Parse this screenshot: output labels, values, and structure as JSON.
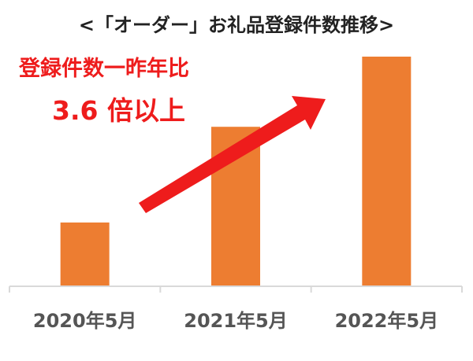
{
  "chart_data": {
    "type": "bar",
    "title": "<「オーダー」お礼品登録件数推移>",
    "xlabel": "",
    "ylabel": "",
    "categories": [
      "2020年5月",
      "2021年5月",
      "2022年5月"
    ],
    "values": [
      1.0,
      2.5,
      3.6
    ],
    "ylim": [
      0,
      3.6
    ],
    "grid": false,
    "legend": "none",
    "bar_color": "#ed7d31",
    "axis_color": "#d9d9d9",
    "annotation": {
      "line1": "登録件数一昨年比",
      "line2": "3.6 倍以上",
      "color": "#ee1c1c",
      "arrow": "up-right"
    }
  }
}
